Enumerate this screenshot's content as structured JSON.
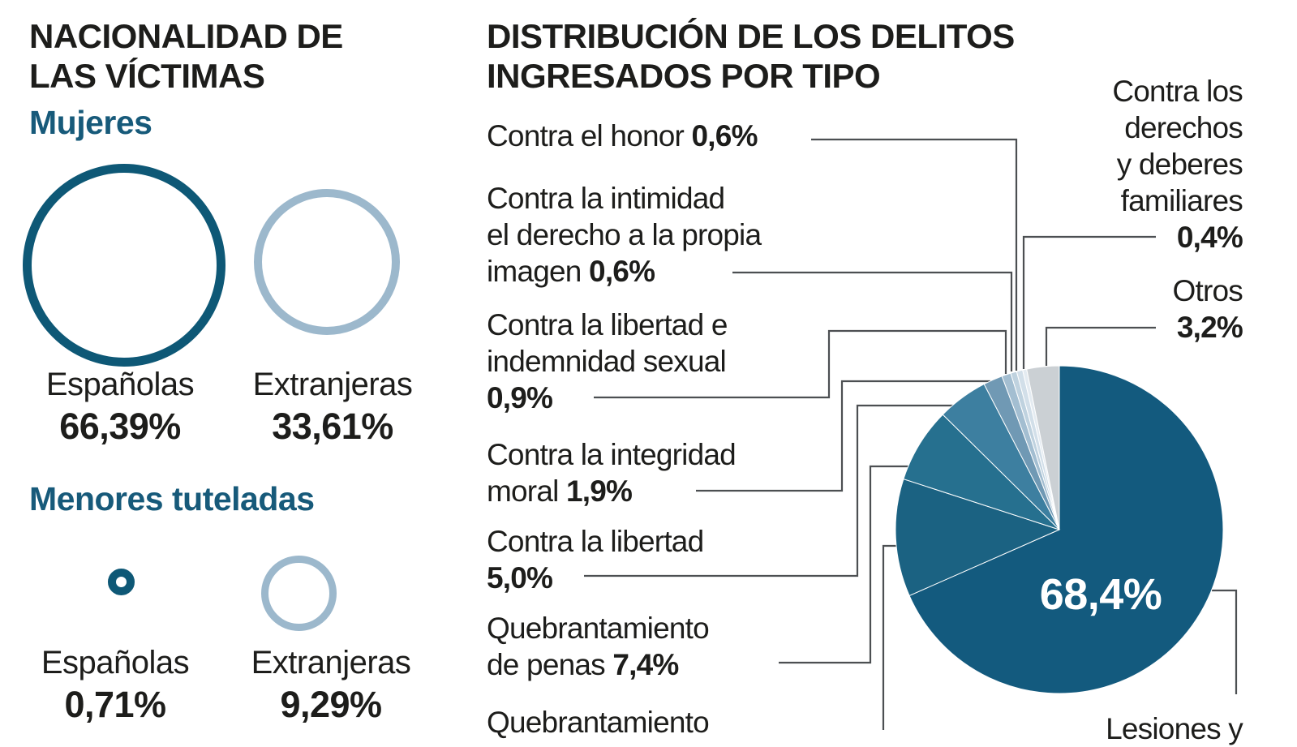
{
  "left_section": {
    "title_lines": [
      "NACIONALIDAD DE",
      "LAS VÍCTIMAS"
    ],
    "groups": [
      {
        "heading": "Mujeres",
        "items": [
          {
            "label": "Españolas",
            "value": "66,39%"
          },
          {
            "label": "Extranjeras",
            "value": "33,61%"
          }
        ]
      },
      {
        "heading": "Menores tuteladas",
        "items": [
          {
            "label": "Españolas",
            "value": "0,71%"
          },
          {
            "label": "Extranjeras",
            "value": "9,29%"
          }
        ]
      }
    ],
    "colors": {
      "dark_ring": "#0e5876",
      "light_ring": "#9cb8cc"
    }
  },
  "right_section": {
    "title_lines": [
      "DISTRIBUCIÓN DE LOS DELITOS",
      "INGRESADOS POR TIPO"
    ],
    "labels": {
      "honor": {
        "pre": "Contra el honor",
        "value": "0,6%"
      },
      "intimidad": {
        "lines": [
          "Contra la intimidad",
          "el derecho a la propia"
        ],
        "pre": "imagen",
        "value": "0,6%"
      },
      "sexual": {
        "lines": [
          "Contra la libertad e",
          "indemnidad sexual"
        ],
        "value": "0,9%"
      },
      "integridad": {
        "lines": [
          "Contra la integridad"
        ],
        "pre": "moral",
        "value": "1,9%"
      },
      "libertad": {
        "lines": [
          "Contra la libertad"
        ],
        "value": "5,0%"
      },
      "penas": {
        "lines": [
          "Quebrantamiento"
        ],
        "pre": "de penas",
        "value": "7,4%"
      },
      "quebrantamiento2": {
        "lines": [
          "Quebrantamiento"
        ]
      },
      "derechos": {
        "lines": [
          "Contra los",
          "derechos",
          "y deberes",
          "familiares"
        ],
        "value": "0,4%"
      },
      "otros": {
        "lines": [
          "Otros"
        ],
        "value": "3,2%"
      },
      "lesiones": {
        "lines": [
          "Lesiones y"
        ]
      }
    }
  },
  "chart_data": [
    {
      "type": "pie",
      "title": "Distribución de los delitos ingresados por tipo",
      "start_at": "top",
      "direction": "clockwise",
      "slices": [
        {
          "label": "Lesiones y (texto cortado en la imagen)",
          "value": 68.4,
          "display": "68,4%",
          "color": "#135a7e"
        },
        {
          "label": "Quebrantamiento (texto cortado en la imagen)",
          "value": 11.6,
          "value_estimated": true,
          "display": "",
          "color": "#1b6282"
        },
        {
          "label": "Quebrantamiento de penas",
          "value": 7.4,
          "display": "7,4%",
          "color": "#26708f"
        },
        {
          "label": "Contra la libertad",
          "value": 5.0,
          "display": "5,0%",
          "color": "#3d7fa0"
        },
        {
          "label": "Contra la integridad moral",
          "value": 1.9,
          "display": "1,9%",
          "color": "#7099b4"
        },
        {
          "label": "Contra la libertad e indemnidad sexual",
          "value": 0.9,
          "display": "0,9%",
          "color": "#a3bed1"
        },
        {
          "label": "Contra la intimidad el derecho a la propia imagen",
          "value": 0.6,
          "display": "0,6%",
          "color": "#bfd2df"
        },
        {
          "label": "Contra el honor",
          "value": 0.6,
          "display": "0,6%",
          "color": "#d2dfe9"
        },
        {
          "label": "Contra los derechos y deberes familiares",
          "value": 0.4,
          "display": "0,4%",
          "color": "#e4ebf1"
        },
        {
          "label": "Otros",
          "value": 3.2,
          "display": "3,2%",
          "color": "#cbd0d4"
        }
      ]
    },
    {
      "type": "pie",
      "variant": "proportional-ring-circles",
      "title": "Nacionalidad de las víctimas",
      "series": [
        {
          "name": "Mujeres",
          "categories": [
            "Españolas",
            "Extranjeras"
          ],
          "values": [
            66.39,
            33.61
          ]
        },
        {
          "name": "Menores tuteladas",
          "categories": [
            "Españolas",
            "Extranjeras"
          ],
          "values": [
            0.71,
            9.29
          ]
        }
      ]
    }
  ]
}
